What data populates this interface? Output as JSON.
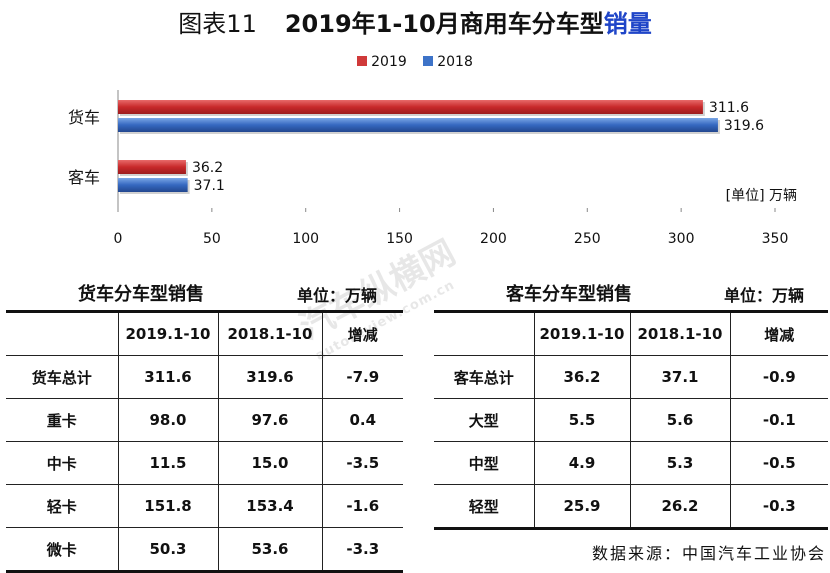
{
  "title": {
    "prefix": "图表11",
    "main": "2019年1-10月商用车分车型",
    "accent": "销量"
  },
  "legend": [
    {
      "label": "2019",
      "color": "#d03a3a"
    },
    {
      "label": "2018",
      "color": "#3d73c8"
    }
  ],
  "chart_data": {
    "type": "bar",
    "orientation": "horizontal",
    "categories": [
      "货车",
      "客车"
    ],
    "series": [
      {
        "name": "2019",
        "values": [
          311.6,
          36.2
        ],
        "color": "#d03a3a"
      },
      {
        "name": "2018",
        "values": [
          319.6,
          37.1
        ],
        "color": "#3d73c8"
      }
    ],
    "xlim": [
      0,
      350
    ],
    "xticks": [
      0,
      50,
      100,
      150,
      200,
      250,
      300,
      350
    ],
    "unit_note": "[单位] 万辆",
    "grid": false,
    "legend_position": "top"
  },
  "truck_table": {
    "title": "货车分车型销售",
    "unit": "单位：万辆",
    "headers": [
      "",
      "2019.1-10",
      "2018.1-10",
      "增减"
    ],
    "rows": [
      [
        "货车总计",
        "311.6",
        "319.6",
        "-7.9"
      ],
      [
        "重卡",
        "98.0",
        "97.6",
        "0.4"
      ],
      [
        "中卡",
        "11.5",
        "15.0",
        "-3.5"
      ],
      [
        "轻卡",
        "151.8",
        "153.4",
        "-1.6"
      ],
      [
        "微卡",
        "50.3",
        "53.6",
        "-3.3"
      ]
    ]
  },
  "bus_table": {
    "title": "客车分车型销售",
    "unit": "单位：万辆",
    "headers": [
      "",
      "2019.1-10",
      "2018.1-10",
      "增减"
    ],
    "rows": [
      [
        "客车总计",
        "36.2",
        "37.1",
        "-0.9"
      ],
      [
        "大型",
        "5.5",
        "5.6",
        "-0.1"
      ],
      [
        "中型",
        "4.9",
        "5.3",
        "-0.5"
      ],
      [
        "轻型",
        "25.9",
        "26.2",
        "-0.3"
      ]
    ]
  },
  "watermark": {
    "text": "汽车纵横网",
    "url": "autoreview.com.cn"
  },
  "source": "数据来源：中国汽车工业协会"
}
